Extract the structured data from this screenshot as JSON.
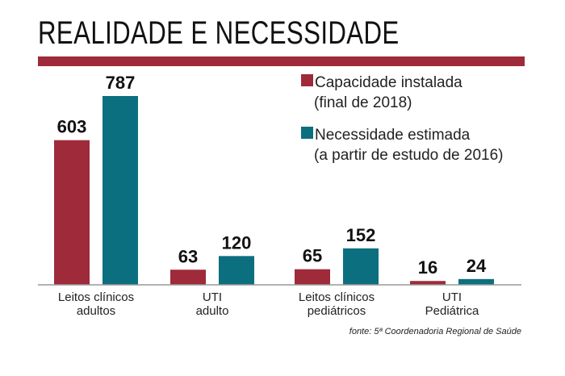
{
  "chart_data": {
    "type": "bar",
    "title": "REALIDADE E NECESSIDADE",
    "categories": [
      [
        "Leitos clínicos",
        "adultos"
      ],
      [
        "UTI",
        "adulto"
      ],
      [
        "Leitos clínicos",
        "pediátricos"
      ],
      [
        "UTI",
        "Pediátrica"
      ]
    ],
    "series": [
      {
        "name": [
          "Capacidade instalada",
          "(final de 2018)"
        ],
        "values": [
          603,
          63,
          65,
          16
        ],
        "color": "#9e2a3a"
      },
      {
        "name": [
          "Necessidade estimada",
          "(a partir de estudo de 2016)"
        ],
        "values": [
          787,
          120,
          152,
          24
        ],
        "color": "#0c6f80"
      }
    ],
    "xlabel": "",
    "ylabel": "",
    "ylim": [
      0,
      787
    ],
    "grid": false,
    "legend": "top-right",
    "source": "fonte: 5ª Coordenadoria Regional de Saúde"
  }
}
